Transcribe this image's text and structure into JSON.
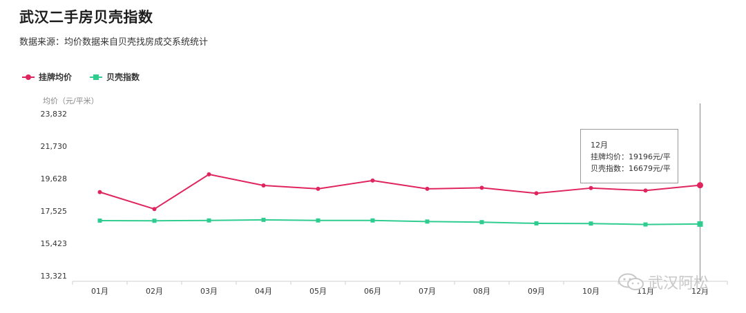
{
  "title": "武汉二手房贝壳指数",
  "subtitle": "数据来源：均价数据来自贝壳找房成交系统统计",
  "legend": [
    {
      "label": "挂牌均价",
      "color": "#e0245e",
      "marker": "circle"
    },
    {
      "label": "贝壳指数",
      "color": "#2ecc8f",
      "marker": "square"
    }
  ],
  "y_unit_label": "均价（元/平米）",
  "tooltip": {
    "title": "12月",
    "line1": "挂牌均价：19196元/平",
    "line2": "贝壳指数：16679元/平"
  },
  "watermark": "武汉阿松",
  "chart_data": {
    "type": "line",
    "title": "武汉二手房贝壳指数",
    "ylabel": "均价（元/平米）",
    "categories": [
      "01月",
      "02月",
      "03月",
      "04月",
      "05月",
      "06月",
      "07月",
      "08月",
      "09月",
      "10月",
      "11月",
      "12月"
    ],
    "y_ticks": [
      "23,832",
      "21,730",
      "19,628",
      "17,525",
      "15,423",
      "13,321"
    ],
    "ylim": [
      13321,
      23832
    ],
    "series": [
      {
        "name": "挂牌均价",
        "color": "#e0245e",
        "marker": "circle",
        "values": [
          18750,
          17650,
          19900,
          19180,
          18960,
          19500,
          18960,
          19030,
          18670,
          19010,
          18850,
          19196
        ]
      },
      {
        "name": "贝壳指数",
        "color": "#2ecc8f",
        "marker": "square",
        "values": [
          16900,
          16890,
          16910,
          16950,
          16910,
          16910,
          16840,
          16800,
          16720,
          16710,
          16650,
          16679
        ]
      }
    ],
    "grid": false,
    "legend_position": "top-left",
    "highlighted_category": "12月"
  }
}
